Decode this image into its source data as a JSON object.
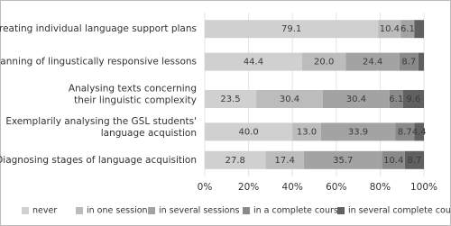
{
  "chart_data": {
    "type": "stacked-bar-horizontal",
    "categories": [
      "Creating individual language support plans",
      "Planning of lingustically responsive lessons",
      "Analysing texts concerning\ntheir linguistic complexity",
      "Exemplarily analysing the GSL students'\nlanguage acquistion",
      "Diagnosing stages of language acquisition"
    ],
    "series": [
      {
        "name": "never",
        "color": "#d0d0d0",
        "values": [
          79.1,
          44.4,
          23.5,
          40.0,
          27.8
        ],
        "value_labels": [
          "79.1",
          "44.4",
          "23.5",
          "40.0",
          "27.8"
        ]
      },
      {
        "name": "in one session",
        "color": "#bcbcbc",
        "values": [
          10.4,
          20.0,
          30.4,
          13.0,
          17.4
        ],
        "value_labels": [
          "10.4",
          "20.0",
          "30.4",
          "13.0",
          "17.4"
        ]
      },
      {
        "name": "in several sessions",
        "color": "#a3a3a3",
        "values": [
          6.1,
          24.4,
          30.4,
          33.9,
          35.7
        ],
        "value_labels": [
          "6.1",
          "24.4",
          "30.4",
          "33.9",
          "35.7"
        ]
      },
      {
        "name": "in a complete course",
        "color": "#8a8a8a",
        "values": [
          0,
          8.7,
          6.1,
          8.7,
          10.4
        ],
        "value_labels": [
          null,
          "8.7",
          "6.1",
          "8.7",
          "10.4"
        ]
      },
      {
        "name": "in several complete courses",
        "color": "#606060",
        "values": [
          4.4,
          2.5,
          9.6,
          4.4,
          8.7
        ],
        "value_labels": [
          null,
          null,
          "9.6",
          "4.4",
          "8.7"
        ]
      }
    ],
    "xlim": [
      0,
      100
    ],
    "xticks": [
      {
        "value": 0,
        "label": "0%"
      },
      {
        "value": 20,
        "label": "20%"
      },
      {
        "value": 40,
        "label": "40%"
      },
      {
        "value": 60,
        "label": "60%"
      },
      {
        "value": 80,
        "label": "80%"
      },
      {
        "value": 100,
        "label": "100%"
      }
    ],
    "grid": true
  }
}
